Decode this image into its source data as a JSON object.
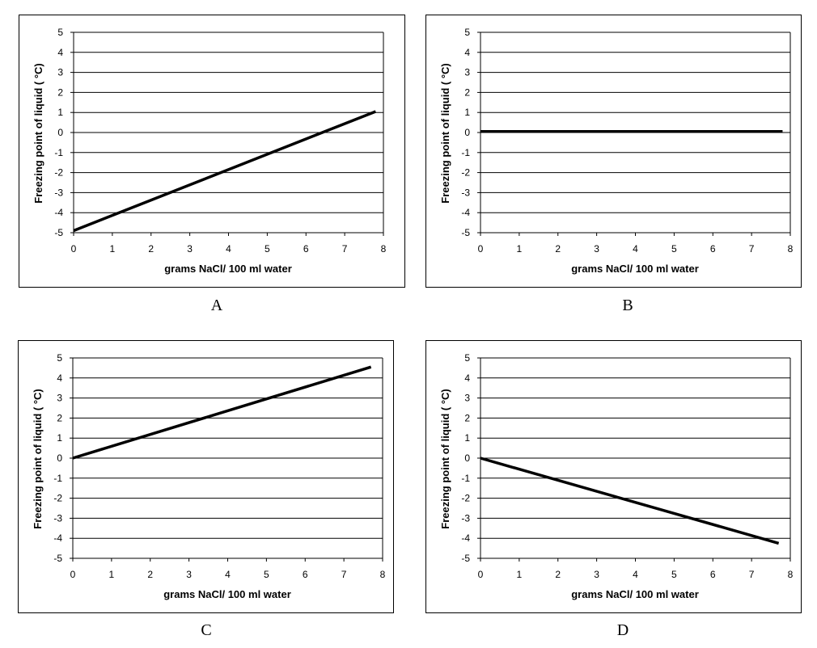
{
  "chart_data": [
    {
      "type": "line",
      "caption": "A",
      "xlabel": "grams NaCl/ 100 ml water",
      "ylabel": "Freezing point of liquid ( °C)",
      "xlim": [
        0,
        8
      ],
      "ylim": [
        -5,
        5
      ],
      "x_ticks": [
        0,
        1,
        2,
        3,
        4,
        5,
        6,
        7,
        8
      ],
      "y_ticks": [
        5,
        4,
        3,
        2,
        1,
        0,
        -1,
        -2,
        -3,
        -4,
        -5
      ],
      "grid": true,
      "series": [
        {
          "x": [
            0,
            7.8
          ],
          "y": [
            -4.9,
            1.05
          ]
        }
      ]
    },
    {
      "type": "line",
      "caption": "B",
      "xlabel": "grams NaCl/ 100 ml water",
      "ylabel": "Freezing point of liquid ( °C)",
      "xlim": [
        0,
        8
      ],
      "ylim": [
        -5,
        5
      ],
      "x_ticks": [
        0,
        1,
        2,
        3,
        4,
        5,
        6,
        7,
        8
      ],
      "y_ticks": [
        5,
        4,
        3,
        2,
        1,
        0,
        -1,
        -2,
        -3,
        -4,
        -5
      ],
      "grid": true,
      "series": [
        {
          "x": [
            0,
            7.8
          ],
          "y": [
            0.05,
            0.05
          ]
        }
      ]
    },
    {
      "type": "line",
      "caption": "C",
      "xlabel": "grams NaCl/ 100 ml water",
      "ylabel": "Freezing point of liquid ( °C)",
      "xlim": [
        0,
        8
      ],
      "ylim": [
        -5,
        5
      ],
      "x_ticks": [
        0,
        1,
        2,
        3,
        4,
        5,
        6,
        7,
        8
      ],
      "y_ticks": [
        5,
        4,
        3,
        2,
        1,
        0,
        -1,
        -2,
        -3,
        -4,
        -5
      ],
      "grid": true,
      "series": [
        {
          "x": [
            0,
            7.7
          ],
          "y": [
            0,
            4.55
          ]
        }
      ]
    },
    {
      "type": "line",
      "caption": "D",
      "xlabel": "grams NaCl/ 100 ml water",
      "ylabel": "Freezing point of liquid ( °C)",
      "xlim": [
        0,
        8
      ],
      "ylim": [
        -5,
        5
      ],
      "x_ticks": [
        0,
        1,
        2,
        3,
        4,
        5,
        6,
        7,
        8
      ],
      "y_ticks": [
        5,
        4,
        3,
        2,
        1,
        0,
        -1,
        -2,
        -3,
        -4,
        -5
      ],
      "grid": true,
      "series": [
        {
          "x": [
            0,
            7.7
          ],
          "y": [
            0,
            -4.25
          ]
        }
      ]
    }
  ]
}
